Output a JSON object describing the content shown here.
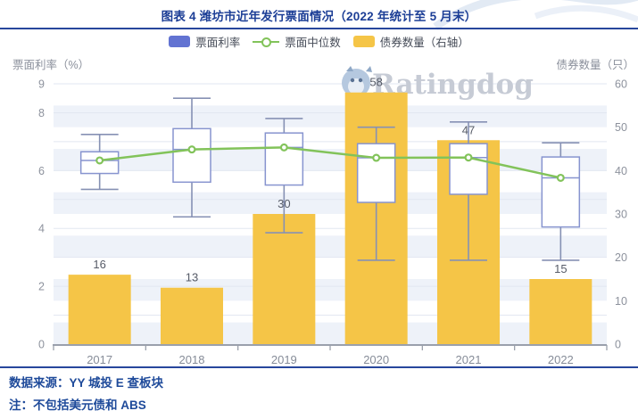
{
  "title": "图表 4 潍坊市近年发行票面情况（2022 年统计至 5 月末）",
  "legend": [
    {
      "label": "票面利率",
      "type": "box",
      "color": "#6273d2"
    },
    {
      "label": "票面中位数",
      "type": "line",
      "color": "#82c35a"
    },
    {
      "label": "债券数量（右轴）",
      "type": "box",
      "color": "#f5c547"
    }
  ],
  "watermark": {
    "text": "Ratingdog"
  },
  "footer": {
    "source": "数据来源：YY 城投 E 查板块",
    "note": "注：不包括美元债和 ABS"
  },
  "chart_data": {
    "type": "boxplot+bar+line",
    "categories": [
      "2017",
      "2018",
      "2019",
      "2020",
      "2021",
      "2022"
    ],
    "left_axis": {
      "title": "票面利率（%）",
      "min": 0,
      "max": 9,
      "ticks": [
        9,
        8,
        6,
        4,
        2,
        0
      ]
    },
    "right_axis": {
      "title": "债券数量（只）",
      "min": 0,
      "max": 60,
      "ticks": [
        60,
        50,
        40,
        30,
        20,
        10,
        0
      ]
    },
    "grid": {
      "band_step_right": 5,
      "band_color": "#eef2f9",
      "line_color": "#e2e7f1"
    },
    "series": [
      {
        "name": "债券数量（右轴）",
        "type": "bar",
        "axis": "right",
        "color": "#f5c547",
        "values": [
          16,
          13,
          30,
          58,
          47,
          15
        ]
      },
      {
        "name": "票面利率",
        "type": "boxplot",
        "axis": "left",
        "color": "#8794cf",
        "whisker_color": "#8691b4",
        "boxes": [
          {
            "low": 5.35,
            "q1": 5.9,
            "median": 6.35,
            "q3": 6.65,
            "high": 7.25
          },
          {
            "low": 4.4,
            "q1": 5.6,
            "median": 6.73,
            "q3": 7.45,
            "high": 8.5
          },
          {
            "low": 3.85,
            "q1": 5.5,
            "median": 6.8,
            "q3": 7.3,
            "high": 7.8
          },
          {
            "low": 2.9,
            "q1": 4.9,
            "median": 6.44,
            "q3": 6.93,
            "high": 7.5
          },
          {
            "low": 2.9,
            "q1": 5.18,
            "median": 6.45,
            "q3": 6.93,
            "high": 7.68
          },
          {
            "low": 2.9,
            "q1": 4.05,
            "median": 5.75,
            "q3": 6.47,
            "high": 6.96
          }
        ]
      },
      {
        "name": "票面中位数",
        "type": "line",
        "axis": "left",
        "color": "#82c35a",
        "values": [
          6.35,
          6.73,
          6.8,
          6.44,
          6.45,
          5.75
        ]
      }
    ]
  }
}
